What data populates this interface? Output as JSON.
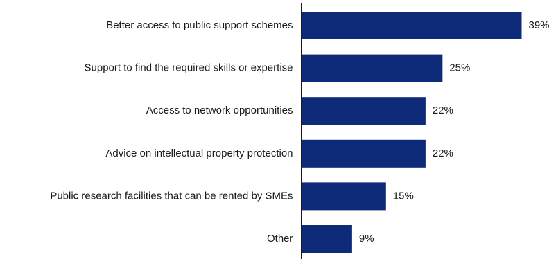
{
  "chart_data": {
    "type": "bar",
    "orientation": "horizontal",
    "categories": [
      "Better access to public support schemes",
      "Support to find the required skills or expertise",
      "Access to network opportunities",
      "Advice on intellectual property protection",
      "Public research facilities that can be rented by SMEs",
      "Other"
    ],
    "values": [
      39,
      25,
      22,
      22,
      15,
      9
    ],
    "value_labels": [
      "39%",
      "25%",
      "22%",
      "22%",
      "15%",
      "9%"
    ],
    "unit": "%",
    "xlim": [
      0,
      39
    ],
    "grid": false,
    "legend": "none",
    "bar_color": "#0d2b78"
  }
}
